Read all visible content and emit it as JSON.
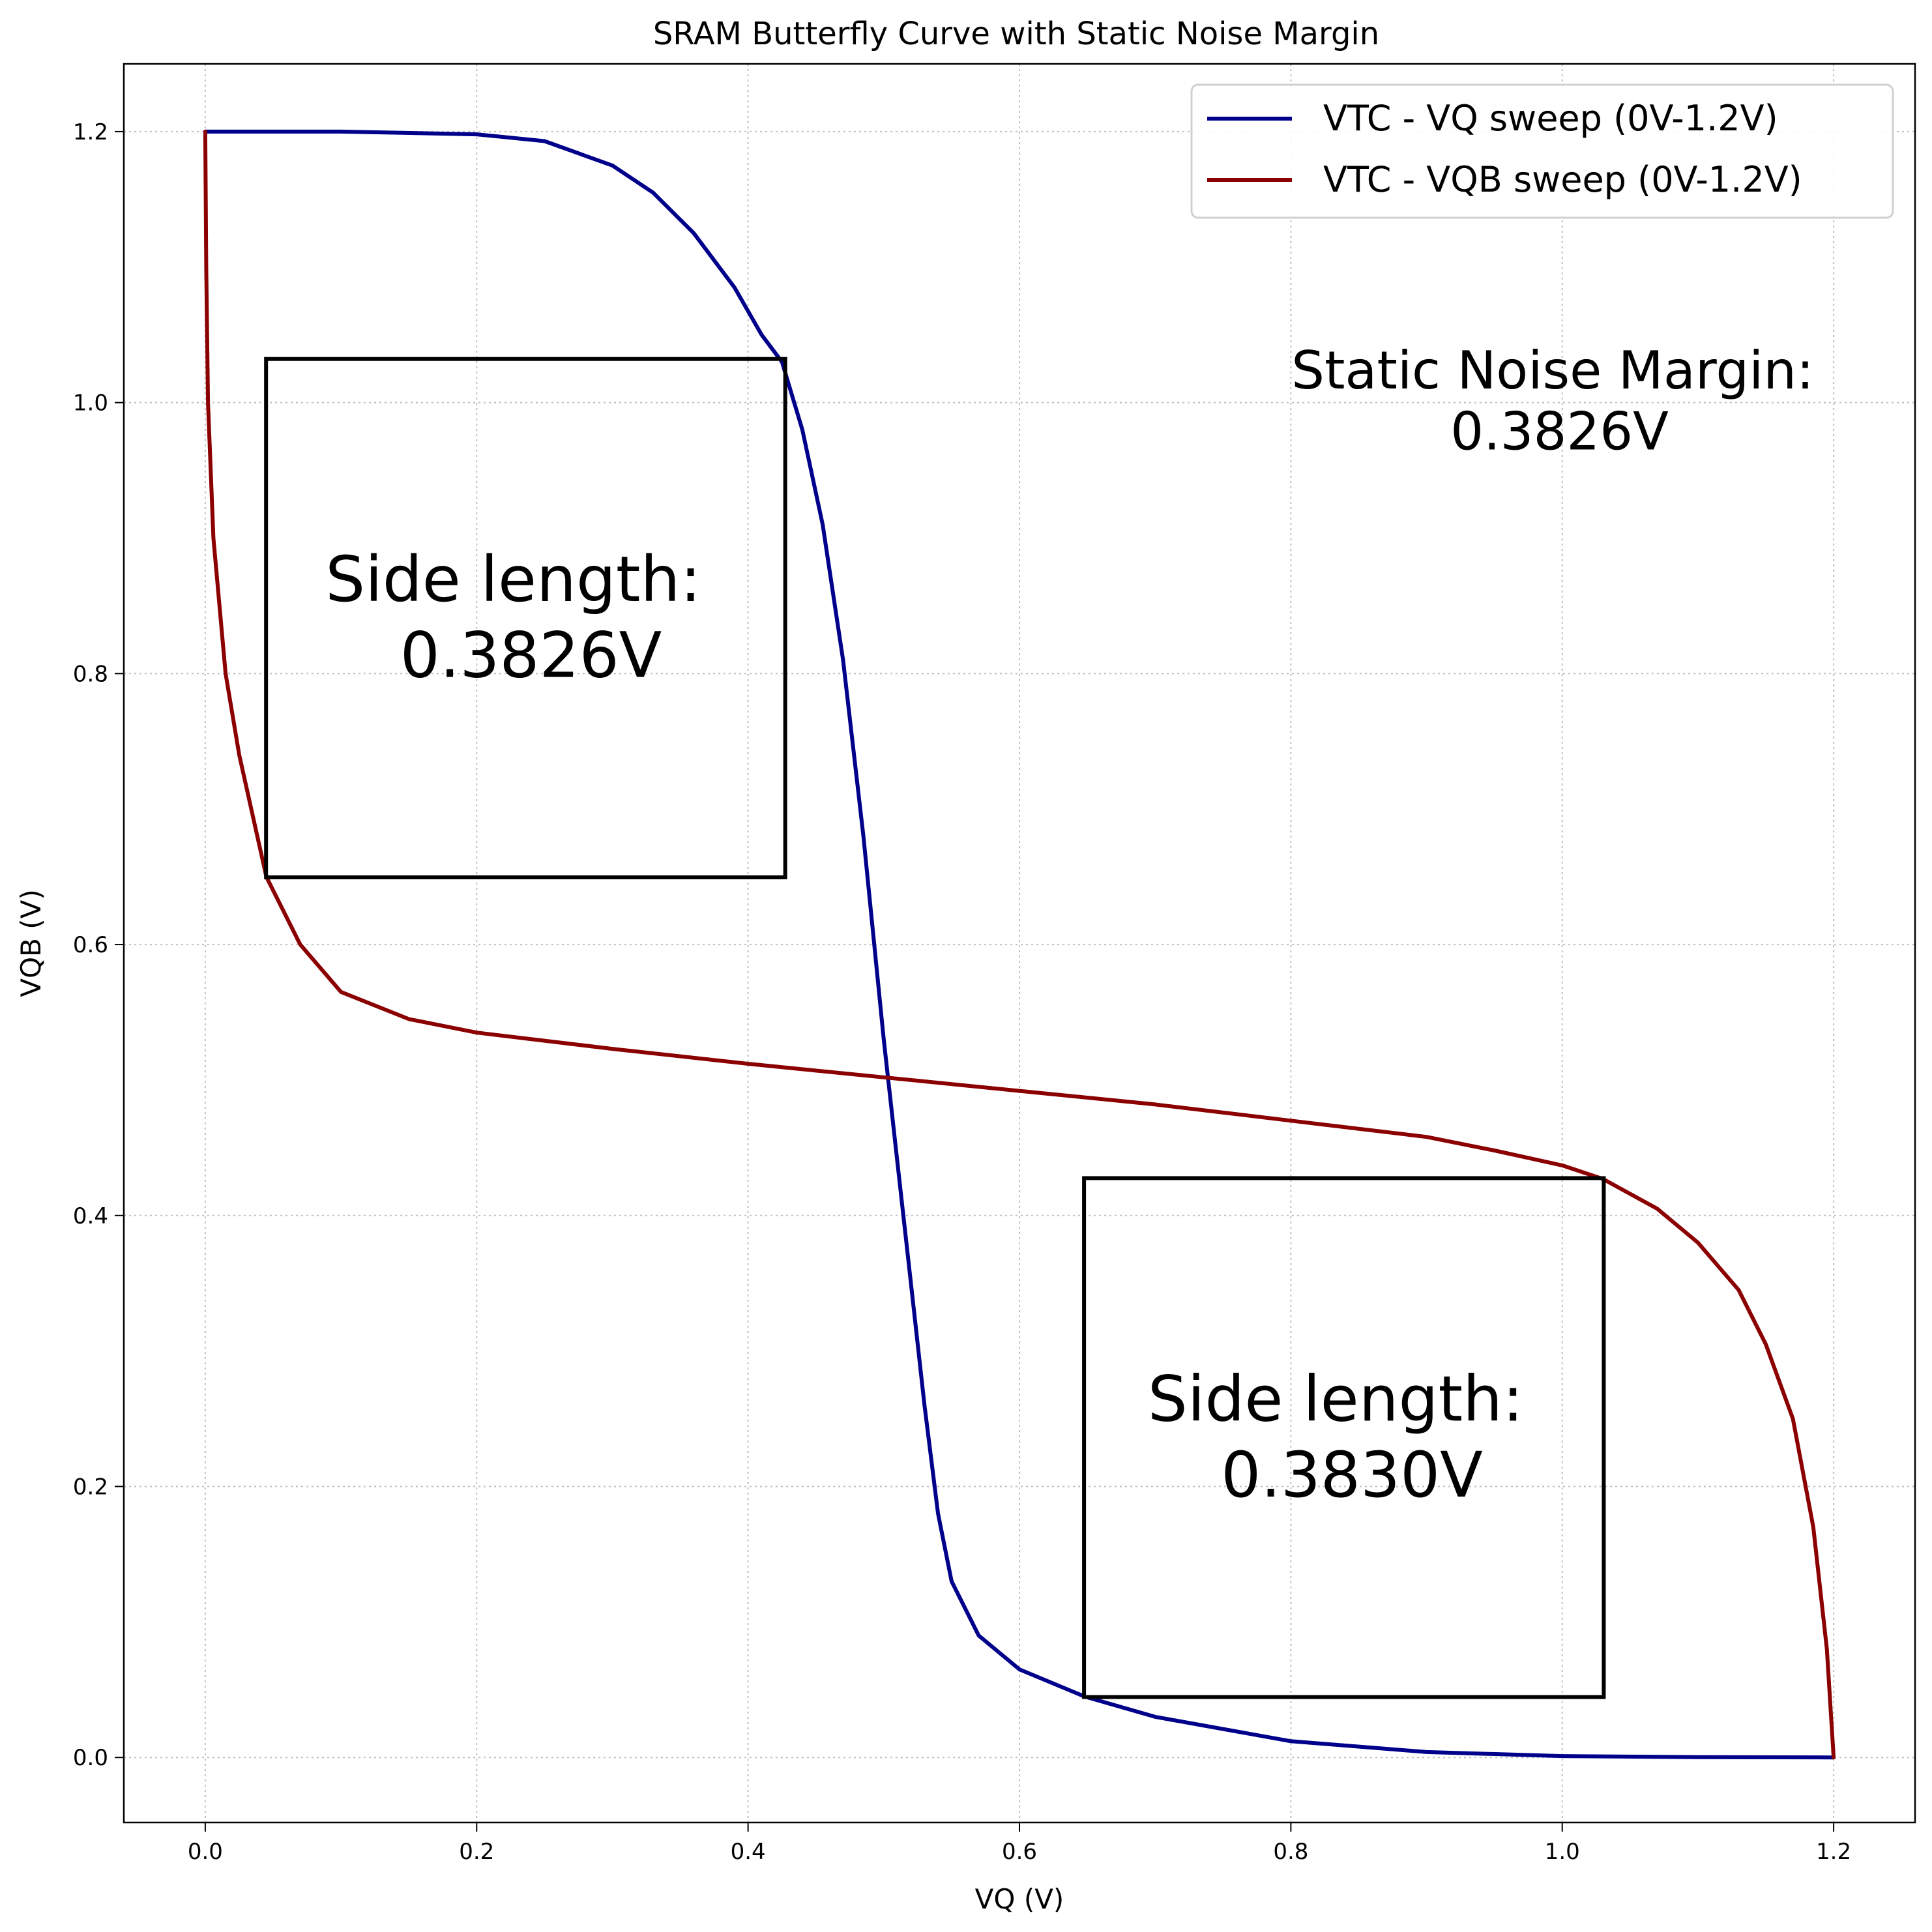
{
  "chart_data": {
    "type": "line",
    "title": "SRAM Butterfly Curve with Static Noise Margin",
    "xlabel": "VQ (V)",
    "ylabel": "VQB (V)",
    "xlim": [
      -0.06,
      1.26
    ],
    "ylim": [
      -0.048,
      1.25
    ],
    "xticks": [
      "0.0",
      "0.2",
      "0.4",
      "0.6",
      "0.8",
      "1.0",
      "1.2"
    ],
    "yticks": [
      "0.0",
      "0.2",
      "0.4",
      "0.6",
      "0.8",
      "1.0",
      "1.2"
    ],
    "grid": true,
    "legend_position": "top-right",
    "series": [
      {
        "name": "VTC - VQ sweep (0V-1.2V)",
        "color": "#00008b",
        "points": [
          [
            0.0,
            1.2
          ],
          [
            0.1,
            1.2
          ],
          [
            0.2,
            1.198
          ],
          [
            0.25,
            1.193
          ],
          [
            0.3,
            1.175
          ],
          [
            0.33,
            1.155
          ],
          [
            0.36,
            1.125
          ],
          [
            0.39,
            1.085
          ],
          [
            0.41,
            1.05
          ],
          [
            0.425,
            1.03
          ],
          [
            0.44,
            0.98
          ],
          [
            0.455,
            0.91
          ],
          [
            0.47,
            0.81
          ],
          [
            0.485,
            0.68
          ],
          [
            0.5,
            0.53
          ],
          [
            0.51,
            0.44
          ],
          [
            0.52,
            0.35
          ],
          [
            0.53,
            0.26
          ],
          [
            0.54,
            0.18
          ],
          [
            0.55,
            0.13
          ],
          [
            0.57,
            0.09
          ],
          [
            0.6,
            0.065
          ],
          [
            0.648,
            0.045
          ],
          [
            0.7,
            0.03
          ],
          [
            0.8,
            0.012
          ],
          [
            0.9,
            0.004
          ],
          [
            1.0,
            0.001
          ],
          [
            1.1,
            0.0002
          ],
          [
            1.2,
            0.0
          ]
        ]
      },
      {
        "name": "VTC - VQB sweep (0V-1.2V)",
        "color": "#8b0000",
        "points": [
          [
            0.0,
            1.2
          ],
          [
            0.0007,
            1.1
          ],
          [
            0.002,
            1.0
          ],
          [
            0.006,
            0.9
          ],
          [
            0.015,
            0.8
          ],
          [
            0.025,
            0.74
          ],
          [
            0.045,
            0.65
          ],
          [
            0.07,
            0.6
          ],
          [
            0.1,
            0.565
          ],
          [
            0.15,
            0.545
          ],
          [
            0.2,
            0.535
          ],
          [
            0.3,
            0.523
          ],
          [
            0.4,
            0.512
          ],
          [
            0.5,
            0.502
          ],
          [
            0.6,
            0.492
          ],
          [
            0.7,
            0.482
          ],
          [
            0.8,
            0.47
          ],
          [
            0.9,
            0.458
          ],
          [
            0.95,
            0.448
          ],
          [
            1.0,
            0.437
          ],
          [
            1.03,
            0.427
          ],
          [
            1.07,
            0.405
          ],
          [
            1.1,
            0.38
          ],
          [
            1.13,
            0.345
          ],
          [
            1.15,
            0.305
          ],
          [
            1.17,
            0.25
          ],
          [
            1.185,
            0.17
          ],
          [
            1.195,
            0.08
          ],
          [
            1.2,
            0.0
          ]
        ]
      }
    ],
    "boxes": [
      {
        "x0": 0.0448,
        "y0": 0.6496,
        "x1": 0.4274,
        "y1": 1.0322,
        "label_line1": "Side length:",
        "label_line2": "0.3826V",
        "label_at": [
          0.227,
          0.868
        ],
        "label_line2_at": [
          0.24,
          0.812
        ]
      },
      {
        "x0": 0.6476,
        "y0": 0.0446,
        "x1": 1.0306,
        "y1": 0.4276,
        "label_line1": "Side length:",
        "label_line2": "0.3830V",
        "label_at": [
          0.833,
          0.263
        ],
        "label_line2_at": [
          0.845,
          0.207
        ]
      }
    ],
    "annotation": {
      "line1": "Static Noise Margin:",
      "line2": "0.3826V",
      "at": [
        0.993,
        1.023
      ],
      "line2_at": [
        0.998,
        0.978
      ]
    }
  }
}
